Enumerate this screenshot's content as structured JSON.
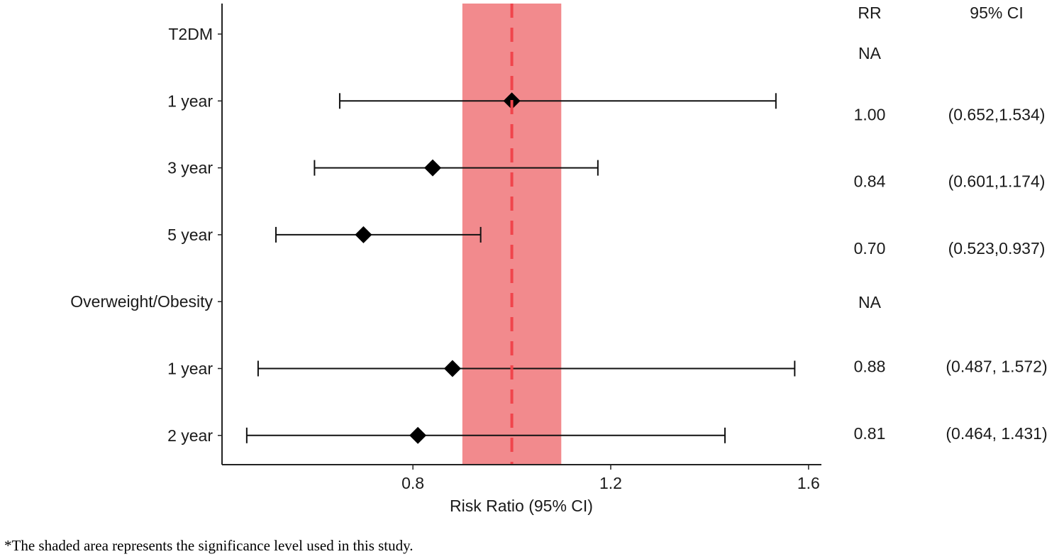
{
  "chart_data": {
    "type": "forest",
    "xlabel": "Risk Ratio (95% CI)",
    "xlim": [
      0.414,
      1.626
    ],
    "xticks": [
      0.8,
      1.2,
      1.6
    ],
    "xtick_labels": [
      "0.8",
      "1.2",
      "1.6"
    ],
    "reference_line": 1.0,
    "shaded_band": [
      0.9,
      1.1
    ],
    "grid": false,
    "colors": {
      "band": "#F28A8D",
      "reference": "#F0454C",
      "marker": "#000000"
    },
    "table_headers": {
      "rr": "RR",
      "ci": "95% CI"
    },
    "rows": [
      {
        "label": "T2DM",
        "rr": null,
        "lower": null,
        "upper": null,
        "rr_text": "NA",
        "ci_text": ""
      },
      {
        "label": "1 year",
        "rr": 1.0,
        "lower": 0.652,
        "upper": 1.534,
        "rr_text": "1.00",
        "ci_text": "(0.652,1.534)"
      },
      {
        "label": "3 year",
        "rr": 0.84,
        "lower": 0.601,
        "upper": 1.174,
        "rr_text": "0.84",
        "ci_text": "(0.601,1.174)"
      },
      {
        "label": "5 year",
        "rr": 0.7,
        "lower": 0.523,
        "upper": 0.937,
        "rr_text": "0.70",
        "ci_text": "(0.523,0.937)"
      },
      {
        "label": "Overweight/Obesity",
        "rr": null,
        "lower": null,
        "upper": null,
        "rr_text": "NA",
        "ci_text": ""
      },
      {
        "label": "1 year",
        "rr": 0.88,
        "lower": 0.487,
        "upper": 1.572,
        "rr_text": "0.88",
        "ci_text": "(0.487, 1.572)"
      },
      {
        "label": "2 year",
        "rr": 0.81,
        "lower": 0.464,
        "upper": 1.431,
        "rr_text": "0.81",
        "ci_text": "(0.464, 1.431)"
      }
    ]
  },
  "footnote": "*The shaded area represents the significance level used in this study."
}
